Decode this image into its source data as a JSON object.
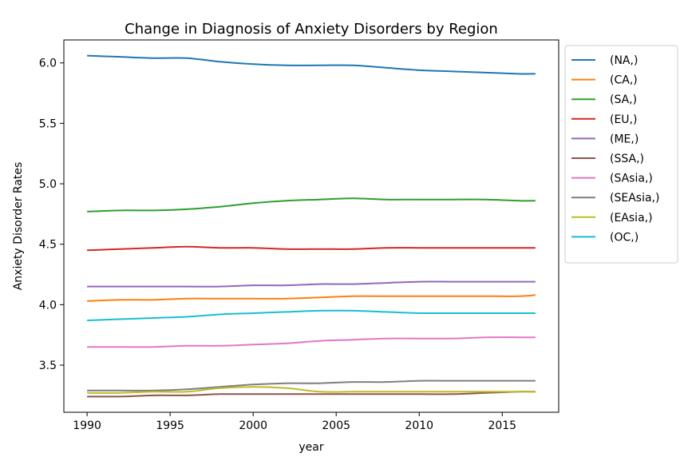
{
  "chart_data": {
    "type": "line",
    "title": "Change in Diagnosis of Anxiety Disorders by Region",
    "xlabel": "year",
    "ylabel": "Anxiety Disorder Rates",
    "xlim": [
      1988.6,
      2018.4
    ],
    "ylim": [
      3.11,
      6.19
    ],
    "xticks": [
      1990,
      1995,
      2000,
      2005,
      2010,
      2015
    ],
    "yticks": [
      3.5,
      4.0,
      4.5,
      5.0,
      5.5,
      6.0
    ],
    "ytick_labels": [
      "3.5",
      "4.0",
      "4.5",
      "5.0",
      "5.5",
      "6.0"
    ],
    "grid": false,
    "legend_position": "outside-right",
    "x": [
      1990,
      1992,
      1994,
      1996,
      1998,
      2000,
      2002,
      2004,
      2006,
      2008,
      2010,
      2012,
      2014,
      2016,
      2017
    ],
    "series": [
      {
        "name": "(NA,)",
        "color": "#1f77b4",
        "values": [
          6.06,
          6.05,
          6.04,
          6.04,
          6.01,
          5.99,
          5.98,
          5.98,
          5.98,
          5.96,
          5.94,
          5.93,
          5.92,
          5.91,
          5.91
        ]
      },
      {
        "name": "(CA,)",
        "color": "#ff7f0e",
        "values": [
          4.03,
          4.04,
          4.04,
          4.05,
          4.05,
          4.05,
          4.05,
          4.06,
          4.07,
          4.07,
          4.07,
          4.07,
          4.07,
          4.07,
          4.08
        ]
      },
      {
        "name": "(SA,)",
        "color": "#2ca02c",
        "values": [
          4.77,
          4.78,
          4.78,
          4.79,
          4.81,
          4.84,
          4.86,
          4.87,
          4.88,
          4.87,
          4.87,
          4.87,
          4.87,
          4.86,
          4.86
        ]
      },
      {
        "name": "(EU,)",
        "color": "#d62728",
        "values": [
          4.45,
          4.46,
          4.47,
          4.48,
          4.47,
          4.47,
          4.46,
          4.46,
          4.46,
          4.47,
          4.47,
          4.47,
          4.47,
          4.47,
          4.47
        ]
      },
      {
        "name": "(ME,)",
        "color": "#9467bd",
        "values": [
          4.15,
          4.15,
          4.15,
          4.15,
          4.15,
          4.16,
          4.16,
          4.17,
          4.17,
          4.18,
          4.19,
          4.19,
          4.19,
          4.19,
          4.19
        ]
      },
      {
        "name": "(SSA,)",
        "color": "#8c564b",
        "values": [
          3.24,
          3.24,
          3.25,
          3.25,
          3.26,
          3.26,
          3.26,
          3.26,
          3.26,
          3.26,
          3.26,
          3.26,
          3.27,
          3.28,
          3.28
        ]
      },
      {
        "name": "(SAsia,)",
        "color": "#e377c2",
        "values": [
          3.65,
          3.65,
          3.65,
          3.66,
          3.66,
          3.67,
          3.68,
          3.7,
          3.71,
          3.72,
          3.72,
          3.72,
          3.73,
          3.73,
          3.73
        ]
      },
      {
        "name": "(SEAsia,)",
        "color": "#7f7f7f",
        "values": [
          3.29,
          3.29,
          3.29,
          3.3,
          3.32,
          3.34,
          3.35,
          3.35,
          3.36,
          3.36,
          3.37,
          3.37,
          3.37,
          3.37,
          3.37
        ]
      },
      {
        "name": "(EAsia,)",
        "color": "#bcbd22",
        "values": [
          3.27,
          3.27,
          3.28,
          3.28,
          3.31,
          3.32,
          3.31,
          3.28,
          3.28,
          3.28,
          3.28,
          3.28,
          3.28,
          3.28,
          3.28
        ]
      },
      {
        "name": "(OC,)",
        "color": "#17becf",
        "values": [
          3.87,
          3.88,
          3.89,
          3.9,
          3.92,
          3.93,
          3.94,
          3.95,
          3.95,
          3.94,
          3.93,
          3.93,
          3.93,
          3.93,
          3.93
        ]
      }
    ]
  }
}
